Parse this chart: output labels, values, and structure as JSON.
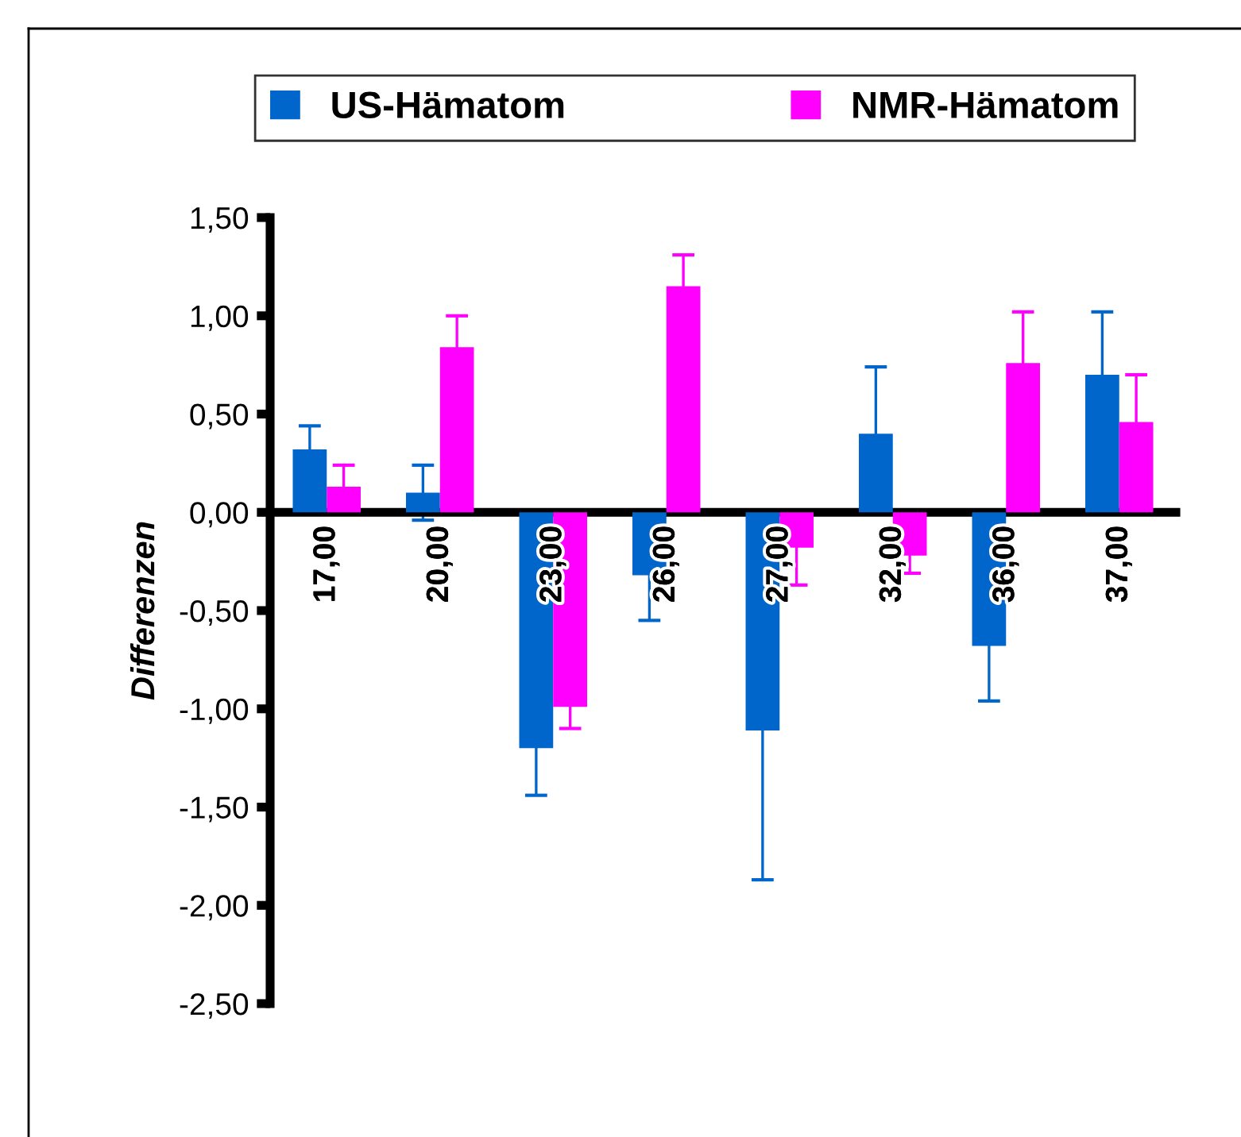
{
  "chart_data": {
    "type": "bar",
    "ylabel": "Differenzen",
    "categories": [
      "17,00",
      "20,00",
      "23,00",
      "26,00",
      "27,00",
      "32,00",
      "36,00",
      "37,00"
    ],
    "series": [
      {
        "name": "US-Hämatom",
        "color": "#0066cc",
        "values": [
          0.32,
          0.1,
          -1.2,
          -0.32,
          -1.11,
          0.4,
          -0.68,
          0.7
        ],
        "errors": [
          0.12,
          0.14,
          0.24,
          0.23,
          0.76,
          0.34,
          0.28,
          0.32
        ]
      },
      {
        "name": "NMR-Hämatom",
        "color": "#ff00ff",
        "values": [
          0.13,
          0.84,
          -0.99,
          1.15,
          -0.18,
          -0.22,
          0.76,
          0.46
        ],
        "errors": [
          0.11,
          0.16,
          0.11,
          0.16,
          0.19,
          0.09,
          0.26,
          0.24
        ]
      }
    ],
    "ylim": [
      -2.5,
      1.5
    ],
    "yticks": [
      {
        "value": -2.5,
        "label": "-2,50"
      },
      {
        "value": -2.0,
        "label": "-2,00"
      },
      {
        "value": -1.5,
        "label": "-1,50"
      },
      {
        "value": -1.0,
        "label": "-1,00"
      },
      {
        "value": -0.5,
        "label": "-0,50"
      },
      {
        "value": 0.0,
        "label": "0,00"
      },
      {
        "value": 0.5,
        "label": "0,50"
      },
      {
        "value": 1.0,
        "label": "1,00"
      },
      {
        "value": 1.5,
        "label": "1,50"
      }
    ],
    "grid": false,
    "legend": "top"
  }
}
